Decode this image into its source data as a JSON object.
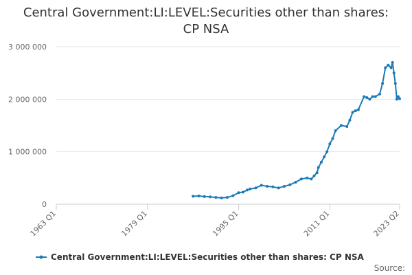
{
  "chart_data": {
    "type": "line",
    "title_line1": "Central Government:LI:LEVEL:Securities other than shares:",
    "title_line2": "CP NSA",
    "xlabel": "",
    "ylabel": "",
    "x_range": [
      1963.0,
      2023.25
    ],
    "ylim": [
      0,
      3000000
    ],
    "y_ticks": [
      0,
      1000000,
      2000000,
      3000000
    ],
    "y_tick_labels": [
      "0",
      "1 000 000",
      "2 000 000",
      "3 000 000"
    ],
    "x_ticks": [
      1963.0,
      1979.0,
      1995.0,
      2011.0,
      2023.25
    ],
    "x_tick_labels": [
      "1963 Q1",
      "1979 Q1",
      "1995 Q1",
      "2011 Q1",
      "2023 Q2"
    ],
    "grid": true,
    "legend_position": "bottom",
    "series": [
      {
        "name": "Central Government:LI:LEVEL:Securities other than shares: CP NSA",
        "color": "#1a7ab6",
        "x": [
          1987.0,
          1988.0,
          1989.0,
          1990.0,
          1991.0,
          1992.0,
          1993.0,
          1994.0,
          1995.0,
          1995.75,
          1996.5,
          1997.0,
          1998.0,
          1999.0,
          2000.0,
          2001.0,
          2002.0,
          2003.0,
          2004.0,
          2005.0,
          2006.0,
          2007.0,
          2007.75,
          2008.25,
          2008.75,
          2009.0,
          2009.5,
          2010.0,
          2010.5,
          2011.0,
          2011.5,
          2012.0,
          2013.0,
          2014.0,
          2014.5,
          2015.0,
          2015.5,
          2016.0,
          2017.0,
          2017.5,
          2018.0,
          2018.5,
          2019.0,
          2019.75,
          2020.25,
          2020.75,
          2021.25,
          2021.75,
          2022.0,
          2022.25,
          2022.5,
          2022.75,
          2023.0,
          2023.25
        ],
        "values": [
          150000,
          155000,
          145000,
          140000,
          130000,
          120000,
          130000,
          160000,
          220000,
          230000,
          270000,
          290000,
          310000,
          360000,
          340000,
          330000,
          310000,
          340000,
          370000,
          420000,
          480000,
          500000,
          480000,
          540000,
          600000,
          700000,
          800000,
          900000,
          1000000,
          1150000,
          1250000,
          1400000,
          1500000,
          1480000,
          1600000,
          1750000,
          1780000,
          1800000,
          2050000,
          2030000,
          2000000,
          2050000,
          2050000,
          2100000,
          2300000,
          2600000,
          2650000,
          2600000,
          2700000,
          2500000,
          2300000,
          2000000,
          2050000,
          2010000
        ]
      }
    ]
  },
  "source_label": "Source:"
}
